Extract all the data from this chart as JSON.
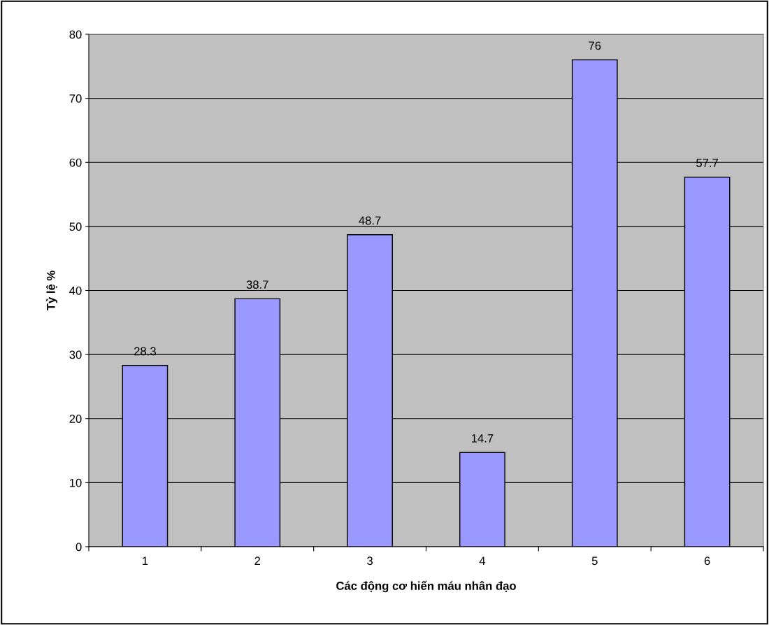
{
  "chart_data": {
    "type": "bar",
    "xlabel": "Các động cơ hiến máu nhân đạo",
    "ylabel": "Tỷ lệ %",
    "categories": [
      "1",
      "2",
      "3",
      "4",
      "5",
      "6"
    ],
    "values": [
      28.3,
      38.7,
      48.7,
      14.7,
      76,
      57.7
    ],
    "color": "#9999ff",
    "ylim": [
      0,
      80
    ],
    "yticks": [
      0,
      10,
      20,
      30,
      40,
      50,
      60,
      70,
      80
    ],
    "grid": "y",
    "data_labels": true
  }
}
